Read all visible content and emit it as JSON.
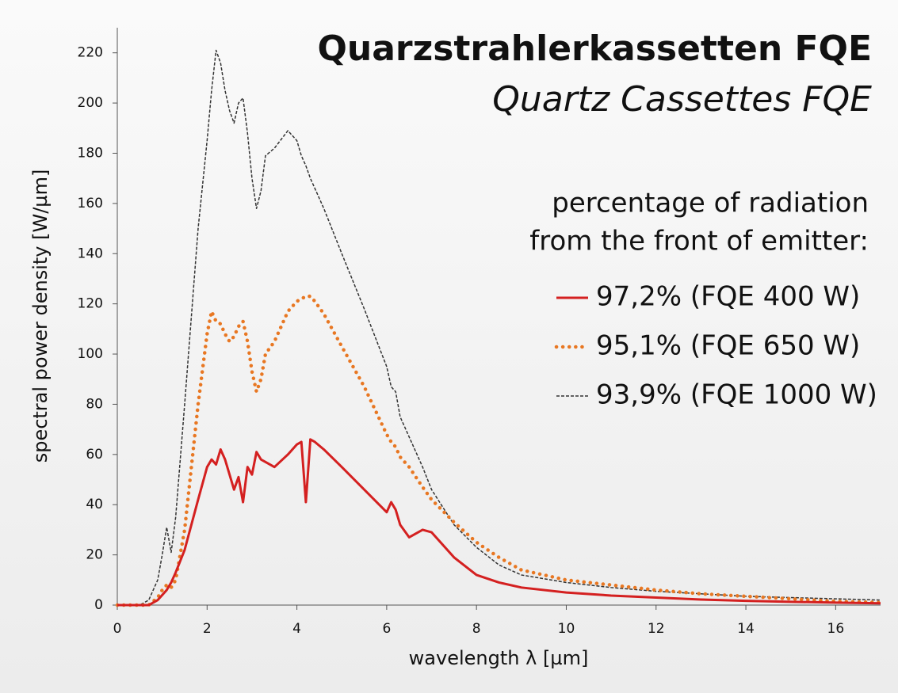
{
  "chart_data": {
    "type": "line",
    "title": "Quarzstrahlerkassetten FQE",
    "subtitle": "Quartz Cassettes FQE",
    "legend_title": [
      "percentage of radiation",
      "from the front of emitter:"
    ],
    "x_label": "wavelength λ [µm]",
    "y_label": "spectral power density [W/µm]",
    "xlim": [
      0,
      17
    ],
    "ylim": [
      0,
      230
    ],
    "xticks": [
      0,
      2,
      4,
      6,
      8,
      10,
      12,
      14,
      16
    ],
    "yticks": [
      0,
      20,
      40,
      60,
      80,
      100,
      120,
      140,
      160,
      180,
      200,
      220
    ],
    "grid": false,
    "legend": "upper right",
    "x": [
      0,
      0.5,
      0.7,
      0.9,
      1.0,
      1.1,
      1.2,
      1.3,
      1.5,
      1.8,
      2.0,
      2.1,
      2.2,
      2.3,
      2.4,
      2.5,
      2.6,
      2.7,
      2.8,
      2.9,
      3.0,
      3.1,
      3.2,
      3.3,
      3.5,
      3.8,
      4.0,
      4.1,
      4.2,
      4.3,
      4.4,
      4.6,
      5.0,
      5.5,
      6.0,
      6.1,
      6.2,
      6.3,
      6.5,
      6.8,
      7.0,
      7.5,
      8.0,
      8.5,
      9.0,
      10,
      11,
      12,
      13,
      14,
      15,
      16,
      17
    ],
    "series": [
      {
        "name": "97,2% (FQE 400 W)",
        "color": "#d42020",
        "style": "solid",
        "values": [
          0,
          0,
          0,
          2,
          4,
          6,
          9,
          13,
          22,
          42,
          55,
          58,
          56,
          62,
          58,
          52,
          46,
          51,
          41,
          55,
          52,
          61,
          58,
          57,
          55,
          60,
          64,
          65,
          41,
          66,
          65,
          62,
          55,
          46,
          37,
          41,
          38,
          32,
          27,
          30,
          29,
          19,
          12,
          9,
          7,
          5,
          3.8,
          3,
          2.2,
          1.7,
          1.3,
          1,
          0.7
        ]
      },
      {
        "name": "95,1% (FQE 650 W)",
        "color": "#e87722",
        "style": "dotted",
        "values": [
          0,
          0,
          0,
          3,
          6,
          8,
          7,
          10,
          30,
          80,
          108,
          117,
          113,
          112,
          108,
          105,
          107,
          111,
          113,
          105,
          93,
          85,
          90,
          100,
          105,
          117,
          121,
          122,
          123,
          123,
          121,
          116,
          103,
          87,
          68,
          65,
          63,
          59,
          55,
          47,
          42,
          33,
          25,
          19,
          14,
          10,
          8,
          6,
          4.5,
          3.5,
          2.5,
          1.5,
          1
        ]
      },
      {
        "name": "93,9% (FQE 1000 W)",
        "color": "#333333",
        "style": "dashed",
        "values": [
          0,
          0,
          2,
          10,
          20,
          31,
          21,
          35,
          80,
          150,
          185,
          205,
          221,
          216,
          205,
          197,
          192,
          200,
          202,
          188,
          170,
          158,
          165,
          179,
          182,
          189,
          185,
          179,
          175,
          170,
          166,
          158,
          140,
          118,
          95,
          87,
          85,
          75,
          67,
          55,
          46,
          32,
          23,
          16,
          12,
          9,
          7,
          5.5,
          4.5,
          3.5,
          3,
          2.5,
          2
        ]
      }
    ]
  }
}
